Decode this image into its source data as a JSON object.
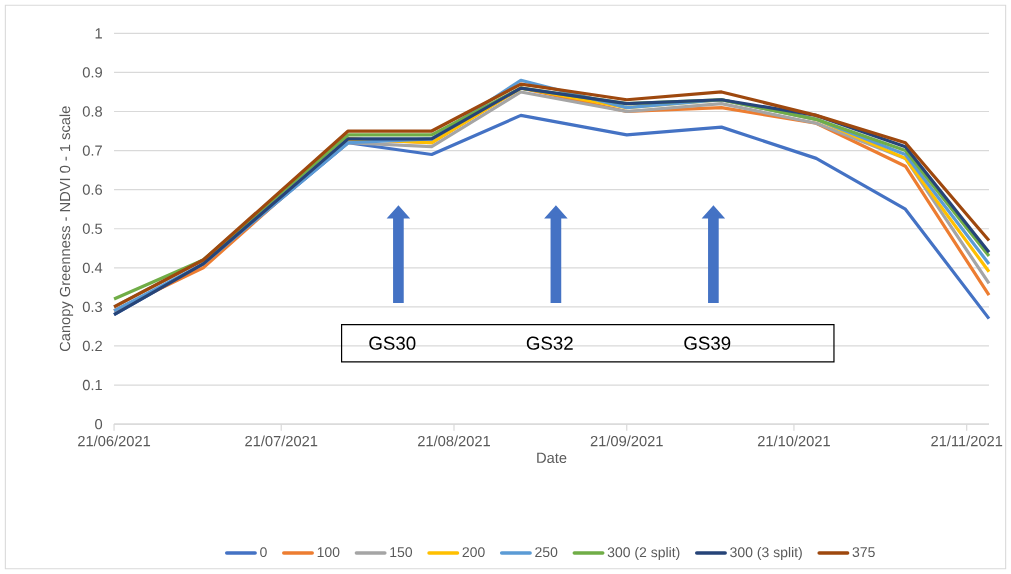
{
  "chart_data": {
    "type": "line",
    "xlabel": "Date",
    "ylabel": "Canopy Greenness - NDVI 0 - 1 scale",
    "x": [
      "2021-06-21",
      "2021-07-07",
      "2021-08-02",
      "2021-08-17",
      "2021-09-02",
      "2021-09-21",
      "2021-10-08",
      "2021-10-25",
      "2021-11-10",
      "2021-11-25"
    ],
    "series": [
      {
        "name": "0",
        "color": "#4472c4",
        "values": [
          0.28,
          0.41,
          0.72,
          0.69,
          0.79,
          0.74,
          0.76,
          0.68,
          0.55,
          0.27
        ]
      },
      {
        "name": "100",
        "color": "#ed7d31",
        "values": [
          0.29,
          0.4,
          0.73,
          0.72,
          0.86,
          0.8,
          0.81,
          0.77,
          0.66,
          0.33
        ]
      },
      {
        "name": "150",
        "color": "#a5a5a5",
        "values": [
          0.3,
          0.42,
          0.72,
          0.71,
          0.85,
          0.8,
          0.82,
          0.77,
          0.68,
          0.36
        ]
      },
      {
        "name": "200",
        "color": "#ffc000",
        "values": [
          null,
          null,
          0.73,
          0.72,
          0.86,
          0.81,
          0.83,
          0.78,
          0.68,
          0.39
        ]
      },
      {
        "name": "250",
        "color": "#5b9bd5",
        "values": [
          0.29,
          0.41,
          0.72,
          0.73,
          0.88,
          0.81,
          0.83,
          0.78,
          0.69,
          0.41
        ]
      },
      {
        "name": "300 (2 split)",
        "color": "#70ad47",
        "values": [
          0.32,
          0.42,
          0.74,
          0.74,
          0.86,
          0.82,
          0.83,
          0.78,
          0.7,
          0.43
        ]
      },
      {
        "name": "300 (3 split)",
        "color": "#264478",
        "values": [
          0.28,
          0.41,
          0.73,
          0.73,
          0.86,
          0.82,
          0.83,
          0.79,
          0.71,
          0.44
        ]
      },
      {
        "name": "375",
        "color": "#9e480e",
        "values": [
          0.3,
          0.42,
          0.75,
          0.75,
          0.87,
          0.83,
          0.85,
          0.79,
          0.72,
          0.47
        ]
      }
    ],
    "xlim": [
      "2021-06-21",
      "2021-11-25"
    ],
    "xticks": [
      {
        "value": "2021-06-21",
        "label": "21/06/2021"
      },
      {
        "value": "2021-07-21",
        "label": "21/07/2021"
      },
      {
        "value": "2021-08-21",
        "label": "21/08/2021"
      },
      {
        "value": "2021-09-21",
        "label": "21/09/2021"
      },
      {
        "value": "2021-10-21",
        "label": "21/10/2021"
      },
      {
        "value": "2021-11-21",
        "label": "21/11/2021"
      }
    ],
    "ylim": [
      0,
      1
    ],
    "yticks": [
      0,
      0.1,
      0.2,
      0.3,
      0.4,
      0.5,
      0.6,
      0.7,
      0.8,
      0.9,
      1
    ],
    "grid": "y",
    "legend": "bottom",
    "line_style": "solid",
    "annotations": [
      "GS30",
      "GS32",
      "GS39"
    ]
  }
}
